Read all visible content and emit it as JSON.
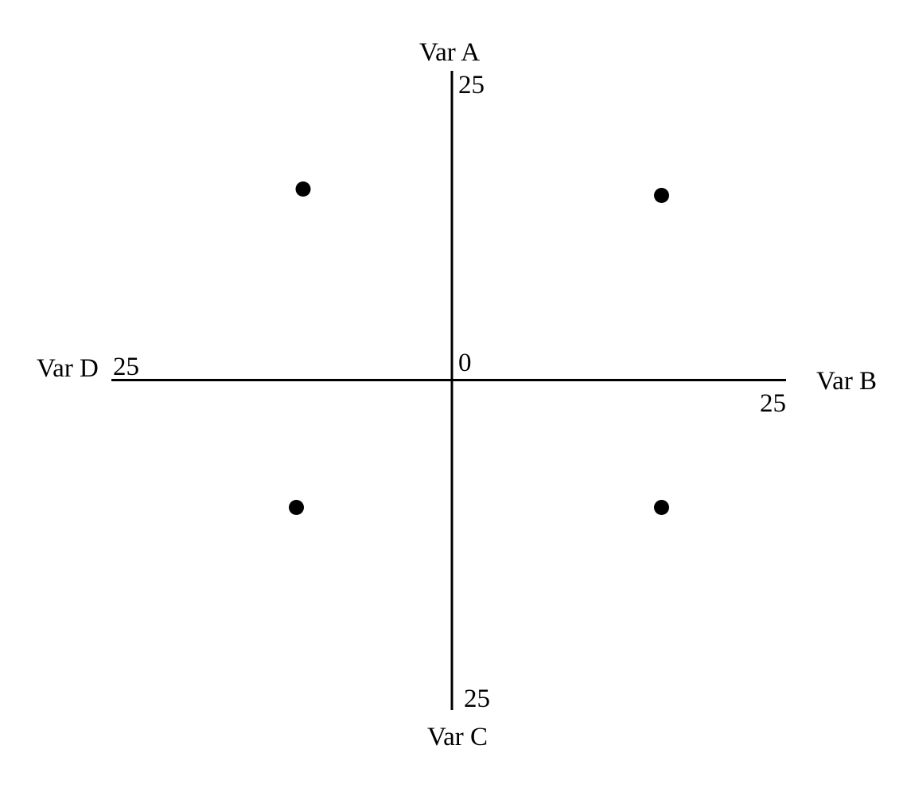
{
  "chart_data": {
    "type": "scatter",
    "variant": "four-axis-quadrant-plot",
    "title": "",
    "origin_label": "0",
    "axes": {
      "up": {
        "label": "Var A",
        "max": 25,
        "max_label": "25"
      },
      "right": {
        "label": "Var B",
        "max": 25,
        "max_label": "25"
      },
      "down": {
        "label": "Var C",
        "max": 25,
        "max_label": "25"
      },
      "left": {
        "label": "Var D",
        "max": 25,
        "max_label": "25"
      }
    },
    "x_axis_meaning": "Var D (negative) to Var B (positive)",
    "y_axis_meaning": "Var C (negative) to Var A (positive)",
    "xlim": [
      -25,
      25
    ],
    "ylim": [
      -25,
      25
    ],
    "grid": false,
    "points": [
      {
        "quadrant": "upper-left",
        "x": -11,
        "y": 15
      },
      {
        "quadrant": "upper-right",
        "x": 15.5,
        "y": 14.5
      },
      {
        "quadrant": "lower-left",
        "x": -11.5,
        "y": -10
      },
      {
        "quadrant": "lower-right",
        "x": 15.5,
        "y": -10
      }
    ],
    "point_color": "#000000",
    "axis_color": "#000000",
    "background": "#ffffff"
  }
}
